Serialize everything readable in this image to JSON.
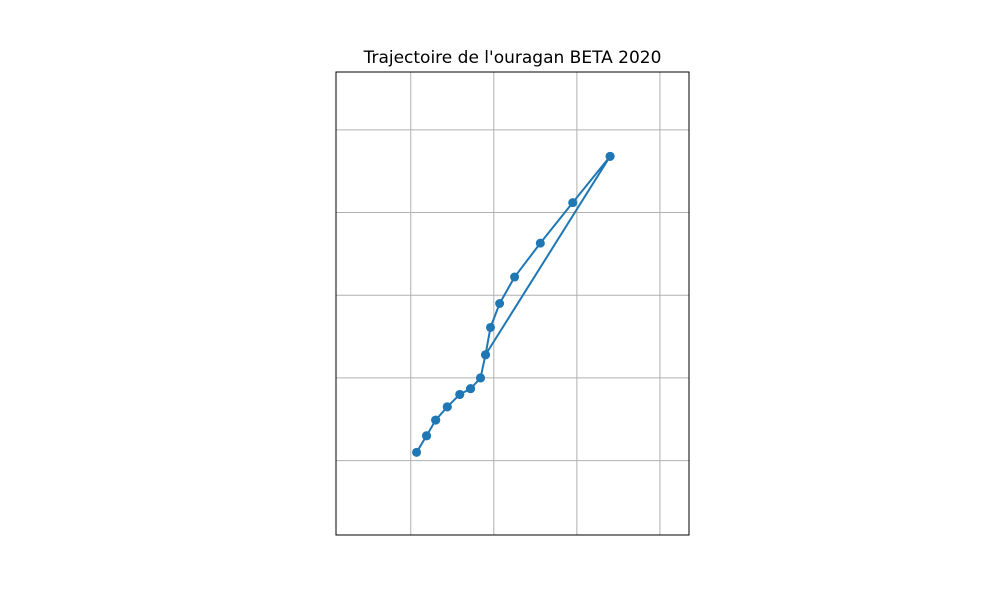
{
  "chart_data": {
    "type": "line",
    "title": "Trajectoire de l'ouragan BETA 2020",
    "xlabel": "",
    "ylabel": "",
    "grid": true,
    "axis_ticks_labels_visible": false,
    "xlim": [
      -97.9,
      -93.65
    ],
    "ylim": [
      24.75,
      30.35
    ],
    "gridlines_x": [
      -97.0,
      -96.0,
      -95.0,
      -94.0
    ],
    "gridlines_y": [
      25.65,
      26.65,
      27.65,
      28.65,
      29.65
    ],
    "series": [
      {
        "color": "#1f77b4",
        "marker": "circle",
        "points": [
          {
            "x": -94.6,
            "y": 29.33
          },
          {
            "x": -95.05,
            "y": 28.77
          },
          {
            "x": -95.44,
            "y": 28.28
          },
          {
            "x": -95.75,
            "y": 27.87
          },
          {
            "x": -95.93,
            "y": 27.55
          },
          {
            "x": -96.04,
            "y": 27.26
          },
          {
            "x": -96.1,
            "y": 26.93
          },
          {
            "x": -96.16,
            "y": 26.65
          },
          {
            "x": -96.28,
            "y": 26.52
          },
          {
            "x": -96.41,
            "y": 26.45
          },
          {
            "x": -96.56,
            "y": 26.3
          },
          {
            "x": -96.7,
            "y": 26.14
          },
          {
            "x": -96.81,
            "y": 25.95
          },
          {
            "x": -96.93,
            "y": 25.75
          },
          {
            "x": -96.81,
            "y": 25.95
          },
          {
            "x": -96.7,
            "y": 26.14
          },
          {
            "x": -96.56,
            "y": 26.3
          },
          {
            "x": -96.41,
            "y": 26.45
          },
          {
            "x": -96.28,
            "y": 26.52
          },
          {
            "x": -96.16,
            "y": 26.65
          },
          {
            "x": -96.1,
            "y": 26.93
          },
          {
            "x": -94.6,
            "y": 29.33
          }
        ]
      }
    ]
  }
}
